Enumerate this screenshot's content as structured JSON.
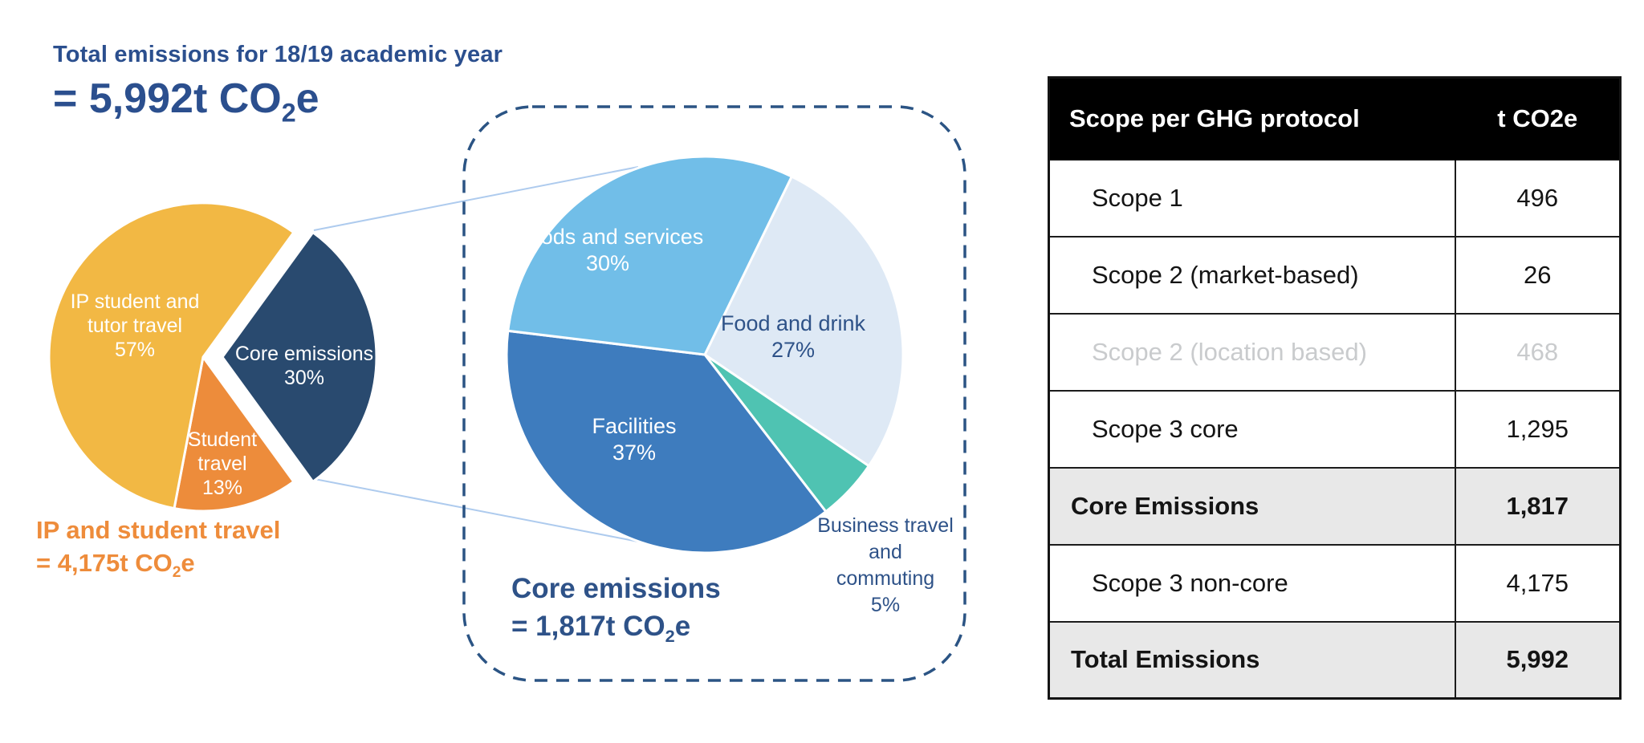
{
  "headline": {
    "line1": "Total emissions for 18/19 academic year",
    "total_prefix": "= 5,992t CO",
    "total_sub": "2",
    "total_suffix": "e"
  },
  "captions": {
    "non_core": {
      "line1": "IP and student travel",
      "prefix": "= 4,175t CO",
      "sub": "2",
      "suffix": "e"
    },
    "core": {
      "line1": "Core emissions",
      "prefix": "= 1,817t CO",
      "sub": "2",
      "suffix": "e"
    }
  },
  "chart_data": [
    {
      "type": "pie",
      "name": "total-emissions-by-category",
      "title": "Total emissions for 18/19 academic year = 5,992t CO2e",
      "units": "percent",
      "start_angle_deg": 36,
      "legend": "none (labels inside slices)",
      "slices": [
        {
          "label": "Core emissions",
          "label_lines": [
            "Core emissions"
          ],
          "value": 30,
          "pct_label": "30%",
          "color": "#294A6F",
          "text_color": "#ffffff",
          "exploded": true
        },
        {
          "label": "Student travel",
          "label_lines": [
            "Student",
            "travel"
          ],
          "value": 13,
          "pct_label": "13%",
          "color": "#ED8C3B",
          "text_color": "#ffffff",
          "exploded": false
        },
        {
          "label": "IP student and tutor travel",
          "label_lines": [
            "IP student and",
            "tutor travel"
          ],
          "value": 57,
          "pct_label": "57%",
          "color": "#F2B844",
          "text_color": "#ffffff",
          "exploded": false
        }
      ],
      "annotation": "IP and student travel = 4,175t CO2e"
    },
    {
      "type": "pie",
      "name": "core-emissions-breakdown",
      "title": "Core emissions = 1,817t CO2e",
      "units": "percent",
      "start_angle_deg": 26,
      "legend": "none (labels inside/next to slices)",
      "slices": [
        {
          "label": "Food and drink",
          "label_lines": [
            "Food and drink"
          ],
          "value": 27,
          "pct_label": "27%",
          "color": "#DEE9F5",
          "text_color": "#2E5288",
          "exploded": false
        },
        {
          "label": "Business travel and commuting",
          "label_lines": [
            "Business travel",
            "and",
            "commuting"
          ],
          "value": 5,
          "pct_label": "5%",
          "color": "#4FC3B2",
          "text_color": "#2E5288",
          "exploded": false
        },
        {
          "label": "Facilities",
          "label_lines": [
            "Facilities"
          ],
          "value": 37,
          "pct_label": "37%",
          "color": "#3E7CBE",
          "text_color": "#ffffff",
          "exploded": false
        },
        {
          "label": "Goods and services",
          "label_lines": [
            "Goods and services"
          ],
          "value": 30,
          "pct_label": "30%",
          "color": "#71BEE8",
          "text_color": "#ffffff",
          "exploded": false
        }
      ]
    }
  ],
  "table": {
    "header": {
      "col1": "Scope per GHG protocol",
      "col2": "t CO2e"
    },
    "rows": [
      {
        "label": "Scope 1",
        "value": "496",
        "style": "normal",
        "indent": true
      },
      {
        "label": "Scope 2 (market-based)",
        "value": "26",
        "style": "normal",
        "indent": true
      },
      {
        "label": "Scope 2 (location based)",
        "value": "468",
        "style": "muted",
        "indent": true
      },
      {
        "label": "Scope 3 core",
        "value": "1,295",
        "style": "normal",
        "indent": true
      },
      {
        "label": "Core Emissions",
        "value": "1,817",
        "style": "summary",
        "indent": false
      },
      {
        "label": "Scope 3 non-core",
        "value": "4,175",
        "style": "normal",
        "indent": true
      },
      {
        "label": "Total Emissions",
        "value": "5,992",
        "style": "summary",
        "indent": false
      }
    ]
  },
  "colors": {
    "headline_blue": "#2B4F8E",
    "label_navy": "#2E5288",
    "callout_dash": "#2B5484",
    "connector_line": "#AECBEE",
    "table_header_bg": "#000000",
    "table_summary_bg": "#e8e8e8",
    "table_muted_text": "#c9cbcd"
  }
}
